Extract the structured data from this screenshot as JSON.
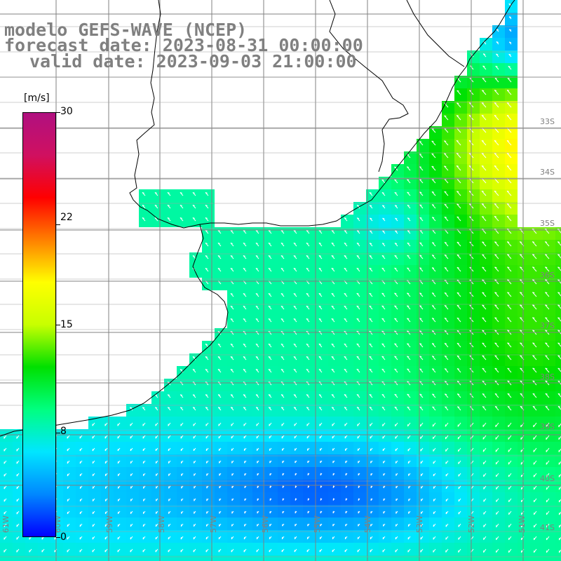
{
  "title": {
    "line1": "modelo GEFS-WAVE (NCEP)",
    "line2": "forecast date: 2023-08-31 00:00:00",
    "line3": "valid date: 2023-09-03 21:00:00"
  },
  "colorbar": {
    "unit": "[m/s]",
    "ticks": [
      "30",
      "22",
      "15",
      "8",
      "0"
    ],
    "range": [
      0,
      30
    ],
    "colors": [
      "#0000ff",
      "#0088ff",
      "#00e6ff",
      "#00ff80",
      "#00e000",
      "#c8ff00",
      "#ffff00",
      "#ff8000",
      "#ff0000",
      "#d01060",
      "#b01080"
    ]
  },
  "lat_labels": [
    "33S",
    "34S",
    "35S",
    "36S",
    "37S",
    "38S",
    "39S",
    "40S",
    "41S"
  ],
  "lon_labels": [
    "61W",
    "60W",
    "59W",
    "58W",
    "57W",
    "56W",
    "55W",
    "54W",
    "53W",
    "52W",
    "51W"
  ],
  "colors": {
    "grid": "#808080",
    "coast": "#000000",
    "arrow": "#ffffff",
    "label": "#808080"
  }
}
